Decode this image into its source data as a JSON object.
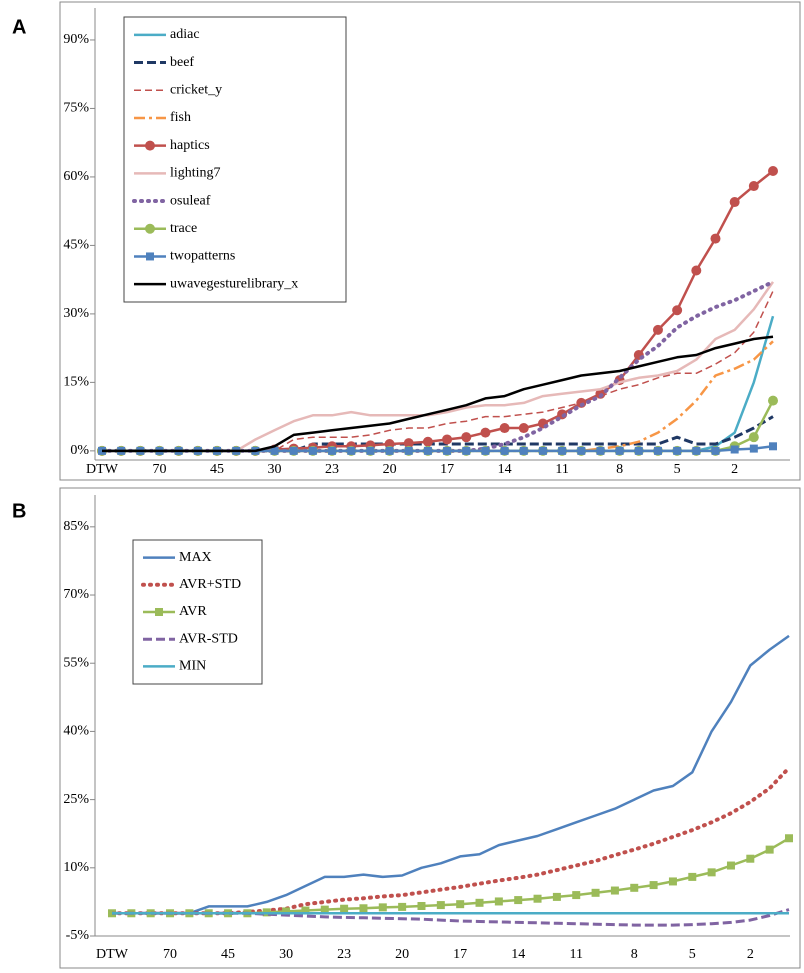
{
  "chart_data": [
    {
      "type": "line",
      "panel_label": "A",
      "categories": [
        "DTW",
        null,
        null,
        "70",
        null,
        null,
        "45",
        null,
        null,
        "30",
        null,
        null,
        "23",
        null,
        null,
        "20",
        null,
        null,
        "17",
        null,
        null,
        "14",
        null,
        null,
        "11",
        null,
        null,
        "8",
        null,
        null,
        "5",
        null,
        null,
        "2",
        null,
        null
      ],
      "ylim": [
        -2,
        97
      ],
      "yticks": [
        {
          "value": 0,
          "label": "0%"
        },
        {
          "value": 15,
          "label": "15%"
        },
        {
          "value": 30,
          "label": "30%"
        },
        {
          "value": 45,
          "label": "45%"
        },
        {
          "value": 60,
          "label": "60%"
        },
        {
          "value": 75,
          "label": "75%"
        },
        {
          "value": 90,
          "label": "90%"
        }
      ],
      "legend": "upper left",
      "series": [
        {
          "name": "adiac",
          "color": "#4bacc6",
          "dash": "solid",
          "values": [
            0,
            0,
            0,
            0,
            0,
            0,
            0,
            0,
            0,
            0,
            0,
            0,
            0,
            0,
            0,
            0,
            0,
            0,
            0,
            0,
            0,
            0,
            0,
            0,
            0,
            0,
            0,
            0,
            0,
            0,
            0,
            0,
            1,
            4,
            15,
            29.5
          ]
        },
        {
          "name": "beef",
          "color": "#1f3864",
          "dash": "dashed",
          "values": [
            0,
            0,
            0,
            0,
            0,
            0,
            0,
            0,
            0,
            0,
            0,
            1.5,
            1.5,
            1.5,
            1.5,
            1.5,
            1.5,
            1.5,
            1.5,
            1.5,
            1.5,
            1.5,
            1.5,
            1.5,
            1.5,
            1.5,
            1.5,
            1.5,
            1.5,
            1.5,
            3,
            1.5,
            1.5,
            3,
            5,
            7.5
          ]
        },
        {
          "name": "cricket_y",
          "color": "#c0504d",
          "dash": "thin-dashed",
          "values": [
            0,
            0,
            0,
            0,
            0,
            0,
            0,
            0,
            0,
            0,
            2.5,
            3,
            3,
            3,
            3.5,
            4.5,
            5,
            5,
            6,
            6.5,
            7.5,
            7.5,
            8,
            8.5,
            9.5,
            10.5,
            12,
            13.5,
            14.5,
            16,
            17,
            17,
            19,
            21.5,
            26,
            35
          ]
        },
        {
          "name": "fish",
          "color": "#f79646",
          "dash": "dashdot",
          "values": [
            0,
            0,
            0,
            0,
            0,
            0,
            0,
            0,
            0,
            0,
            0,
            0,
            0,
            0,
            0,
            0,
            0,
            0,
            0,
            0,
            0,
            0,
            0,
            0,
            0,
            0,
            0.5,
            1,
            2,
            4,
            7,
            11,
            16.5,
            18,
            20,
            24
          ]
        },
        {
          "name": "haptics",
          "color": "#c0504d",
          "dash": "solid",
          "marker": "circle",
          "values": [
            0,
            0,
            0,
            0,
            0,
            0,
            0,
            0,
            0,
            0.3,
            0.5,
            0.7,
            1,
            1,
            1.2,
            1.5,
            1.7,
            2,
            2.5,
            3,
            4,
            5,
            5,
            6,
            8,
            10.5,
            12.5,
            15.5,
            21,
            26.5,
            30.8,
            39.5,
            46.5,
            54.5,
            58,
            61.3
          ]
        },
        {
          "name": "lighting7",
          "color": "#e6b9b8",
          "dash": "solid",
          "values": [
            0,
            0,
            0,
            0,
            0,
            0,
            0,
            0,
            2.5,
            4.5,
            6.5,
            7.8,
            7.8,
            8.5,
            7.8,
            7.8,
            7.8,
            7.8,
            8.5,
            9.5,
            10,
            10,
            10.5,
            12,
            12.5,
            13,
            13.5,
            15,
            16,
            16.5,
            17.5,
            20,
            24.5,
            26.5,
            31,
            37
          ]
        },
        {
          "name": "osuleaf",
          "color": "#8064a2",
          "dash": "dotted",
          "values": [
            0,
            0,
            0,
            0,
            0,
            0,
            0,
            0,
            0,
            0,
            0,
            0,
            0,
            0,
            0,
            0,
            0,
            0,
            0,
            0,
            0.5,
            1.5,
            3,
            5,
            7.5,
            10,
            12,
            16,
            20,
            23,
            27,
            29.5,
            31.5,
            33,
            35,
            37
          ]
        },
        {
          "name": "trace",
          "color": "#9bbb59",
          "dash": "solid",
          "marker": "circle",
          "values": [
            0,
            0,
            0,
            0,
            0,
            0,
            0,
            0,
            0,
            0,
            0,
            0,
            0,
            0,
            0,
            0,
            0,
            0,
            0,
            0,
            0,
            0,
            0,
            0,
            0,
            0,
            0,
            0,
            0,
            0,
            0,
            0,
            0,
            1,
            3,
            11
          ]
        },
        {
          "name": "twopatterns",
          "color": "#4f81bd",
          "dash": "solid",
          "marker": "square",
          "values": [
            0,
            0,
            0,
            0,
            0,
            0,
            0,
            0,
            0,
            0,
            0,
            0,
            0,
            0,
            0,
            0,
            0,
            0,
            0,
            0,
            0,
            0,
            0,
            0,
            0,
            0,
            0,
            0,
            0,
            0,
            0,
            0,
            0,
            0.3,
            0.5,
            1
          ]
        },
        {
          "name": "uwavegesturelibrary_x",
          "color": "#000000",
          "dash": "solid",
          "values": [
            0,
            0,
            0,
            0,
            0,
            0,
            0,
            0,
            0,
            1,
            3.5,
            4,
            4.5,
            5,
            5.5,
            6,
            7,
            8,
            9,
            10,
            11.5,
            12,
            13.5,
            14.5,
            15.5,
            16.5,
            17,
            17.5,
            18.5,
            19.5,
            20.5,
            21,
            22.5,
            23.5,
            24.5,
            25
          ]
        }
      ]
    },
    {
      "type": "line",
      "panel_label": "B",
      "categories": [
        "DTW",
        null,
        null,
        "70",
        null,
        null,
        "45",
        null,
        null,
        "30",
        null,
        null,
        "23",
        null,
        null,
        "20",
        null,
        null,
        "17",
        null,
        null,
        "14",
        null,
        null,
        "11",
        null,
        null,
        "8",
        null,
        null,
        "5",
        null,
        null,
        "2",
        null,
        null
      ],
      "ylim": [
        -5,
        92
      ],
      "yticks": [
        {
          "value": -5,
          "label": "-5%"
        },
        {
          "value": 10,
          "label": "10%"
        },
        {
          "value": 25,
          "label": "25%"
        },
        {
          "value": 40,
          "label": "40%"
        },
        {
          "value": 55,
          "label": "55%"
        },
        {
          "value": 70,
          "label": "70%"
        },
        {
          "value": 85,
          "label": "85%"
        }
      ],
      "legend": "upper left",
      "series": [
        {
          "name": "MAX",
          "color": "#4f81bd",
          "dash": "solid",
          "values": [
            0,
            0,
            0,
            0,
            0,
            1.5,
            1.5,
            1.5,
            2.5,
            4,
            6,
            8,
            8,
            8.5,
            8,
            8.3,
            10,
            11,
            12.5,
            13,
            15,
            16,
            17,
            18.5,
            20,
            21.5,
            23,
            25,
            27,
            28,
            31,
            40,
            46.5,
            54.5,
            58,
            61
          ]
        },
        {
          "name": "AVR+STD",
          "color": "#c0504d",
          "dash": "dotted",
          "values": [
            0,
            0,
            0,
            0,
            0,
            0,
            0,
            0.3,
            0.6,
            1,
            2,
            2.5,
            3,
            3.3,
            3.7,
            4,
            4.6,
            5.2,
            5.8,
            6.5,
            7.2,
            7.8,
            8.5,
            9.5,
            10.5,
            11.5,
            12.8,
            14,
            15.3,
            16.8,
            18.3,
            20,
            22,
            24.5,
            27.5,
            32
          ]
        },
        {
          "name": "AVR",
          "color": "#9bbb59",
          "dash": "solid",
          "marker": "square",
          "values": [
            0,
            0,
            0,
            0,
            0,
            0,
            0,
            0,
            0.2,
            0.4,
            0.6,
            0.8,
            1,
            1.1,
            1.3,
            1.4,
            1.6,
            1.8,
            2,
            2.3,
            2.6,
            2.9,
            3.2,
            3.6,
            4,
            4.5,
            5,
            5.6,
            6.2,
            7,
            8,
            9,
            10.5,
            12,
            14,
            16.5
          ]
        },
        {
          "name": "AVR-STD",
          "color": "#8064a2",
          "dash": "dashed",
          "values": [
            0,
            0,
            0,
            0,
            0,
            0,
            0,
            0,
            -0.2,
            -0.4,
            -0.6,
            -0.8,
            -0.9,
            -1,
            -1.1,
            -1.2,
            -1.3,
            -1.5,
            -1.7,
            -1.8,
            -1.9,
            -2,
            -2.1,
            -2.2,
            -2.3,
            -2.4,
            -2.5,
            -2.6,
            -2.6,
            -2.6,
            -2.5,
            -2.3,
            -2,
            -1.5,
            -0.5,
            0.8
          ]
        },
        {
          "name": "MIN",
          "color": "#4bacc6",
          "dash": "solid",
          "values": [
            0,
            0,
            0,
            0,
            0,
            0,
            0,
            0,
            0,
            0,
            0,
            0,
            0,
            0,
            0,
            0,
            0,
            0,
            0,
            0,
            0,
            0,
            0,
            0,
            0,
            0,
            0,
            0,
            0,
            0,
            0,
            0,
            0,
            0,
            0,
            0
          ]
        }
      ]
    }
  ]
}
